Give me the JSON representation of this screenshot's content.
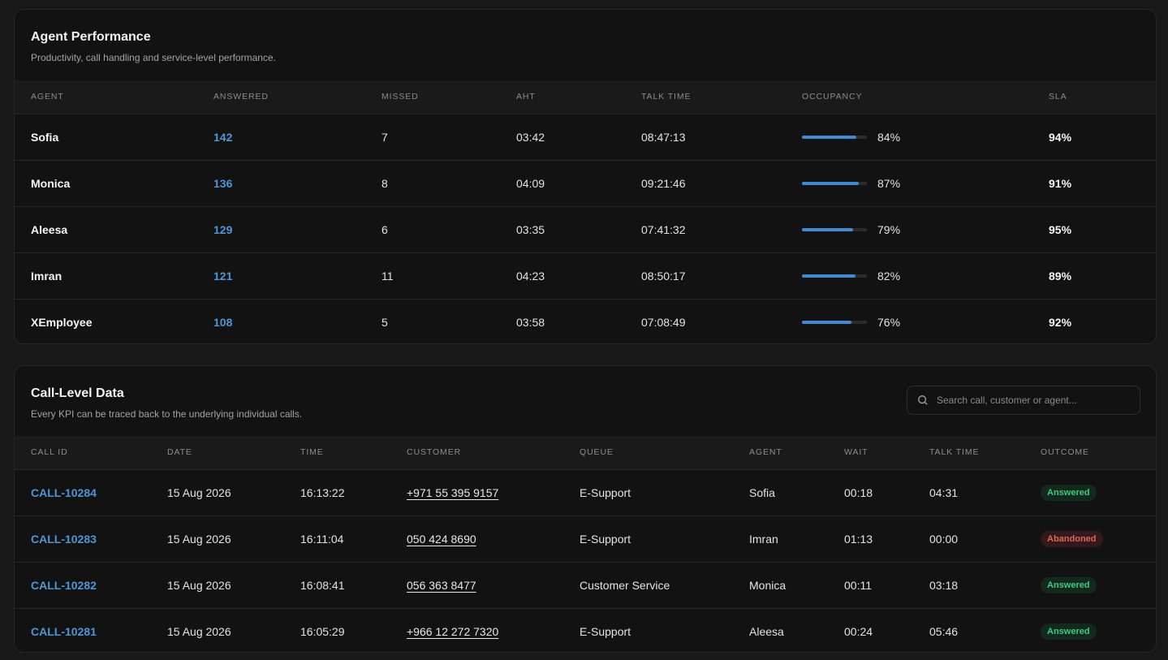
{
  "agent_performance": {
    "title": "Agent Performance",
    "subtitle": "Productivity, call handling and service-level performance.",
    "columns": [
      "Agent",
      "Answered",
      "Missed",
      "AHT",
      "Talk Time",
      "Occupancy",
      "SLA"
    ],
    "rows": [
      {
        "agent": "Sofia",
        "answered": "142",
        "missed": "7",
        "aht": "03:42",
        "talk_time": "08:47:13",
        "occupancy": "84%",
        "occupancy_value": 84,
        "sla": "94%"
      },
      {
        "agent": "Monica",
        "answered": "136",
        "missed": "8",
        "aht": "04:09",
        "talk_time": "09:21:46",
        "occupancy": "87%",
        "occupancy_value": 87,
        "sla": "91%"
      },
      {
        "agent": "Aleesa",
        "answered": "129",
        "missed": "6",
        "aht": "03:35",
        "talk_time": "07:41:32",
        "occupancy": "79%",
        "occupancy_value": 79,
        "sla": "95%"
      },
      {
        "agent": "Imran",
        "answered": "121",
        "missed": "11",
        "aht": "04:23",
        "talk_time": "08:50:17",
        "occupancy": "82%",
        "occupancy_value": 82,
        "sla": "89%"
      },
      {
        "agent": "XEmployee",
        "answered": "108",
        "missed": "5",
        "aht": "03:58",
        "talk_time": "07:08:49",
        "occupancy": "76%",
        "occupancy_value": 76,
        "sla": "92%"
      }
    ]
  },
  "call_level": {
    "title": "Call-Level Data",
    "subtitle": "Every KPI can be traced back to the underlying individual calls.",
    "search": {
      "placeholder": "Search call, customer or agent...",
      "icon": "search-icon"
    },
    "columns": [
      "Call ID",
      "Date",
      "Time",
      "Customer",
      "Queue",
      "Agent",
      "Wait",
      "Talk Time",
      "Outcome"
    ],
    "rows": [
      {
        "call_id": "CALL-10284",
        "date": "15 Aug 2026",
        "time": "16:13:22",
        "customer": "+971 55 395 9157",
        "queue": "E-Support",
        "agent": "Sofia",
        "wait": "00:18",
        "talk_time": "04:31",
        "outcome": "Answered"
      },
      {
        "call_id": "CALL-10283",
        "date": "15 Aug 2026",
        "time": "16:11:04",
        "customer": "050 424 8690",
        "queue": "E-Support",
        "agent": "Imran",
        "wait": "01:13",
        "talk_time": "00:00",
        "outcome": "Abandoned"
      },
      {
        "call_id": "CALL-10282",
        "date": "15 Aug 2026",
        "time": "16:08:41",
        "customer": "056 363 8477",
        "queue": "Customer Service",
        "agent": "Monica",
        "wait": "00:11",
        "talk_time": "03:18",
        "outcome": "Answered"
      },
      {
        "call_id": "CALL-10281",
        "date": "15 Aug 2026",
        "time": "16:05:29",
        "customer": "+966 12 272 7320",
        "queue": "E-Support",
        "agent": "Aleesa",
        "wait": "00:24",
        "talk_time": "05:46",
        "outcome": "Answered"
      }
    ]
  },
  "colors": {
    "accent": "#4f96d6",
    "answered": "#3ec97f",
    "abandoned": "#e0625e",
    "background": "#181818",
    "card": "#121212"
  }
}
